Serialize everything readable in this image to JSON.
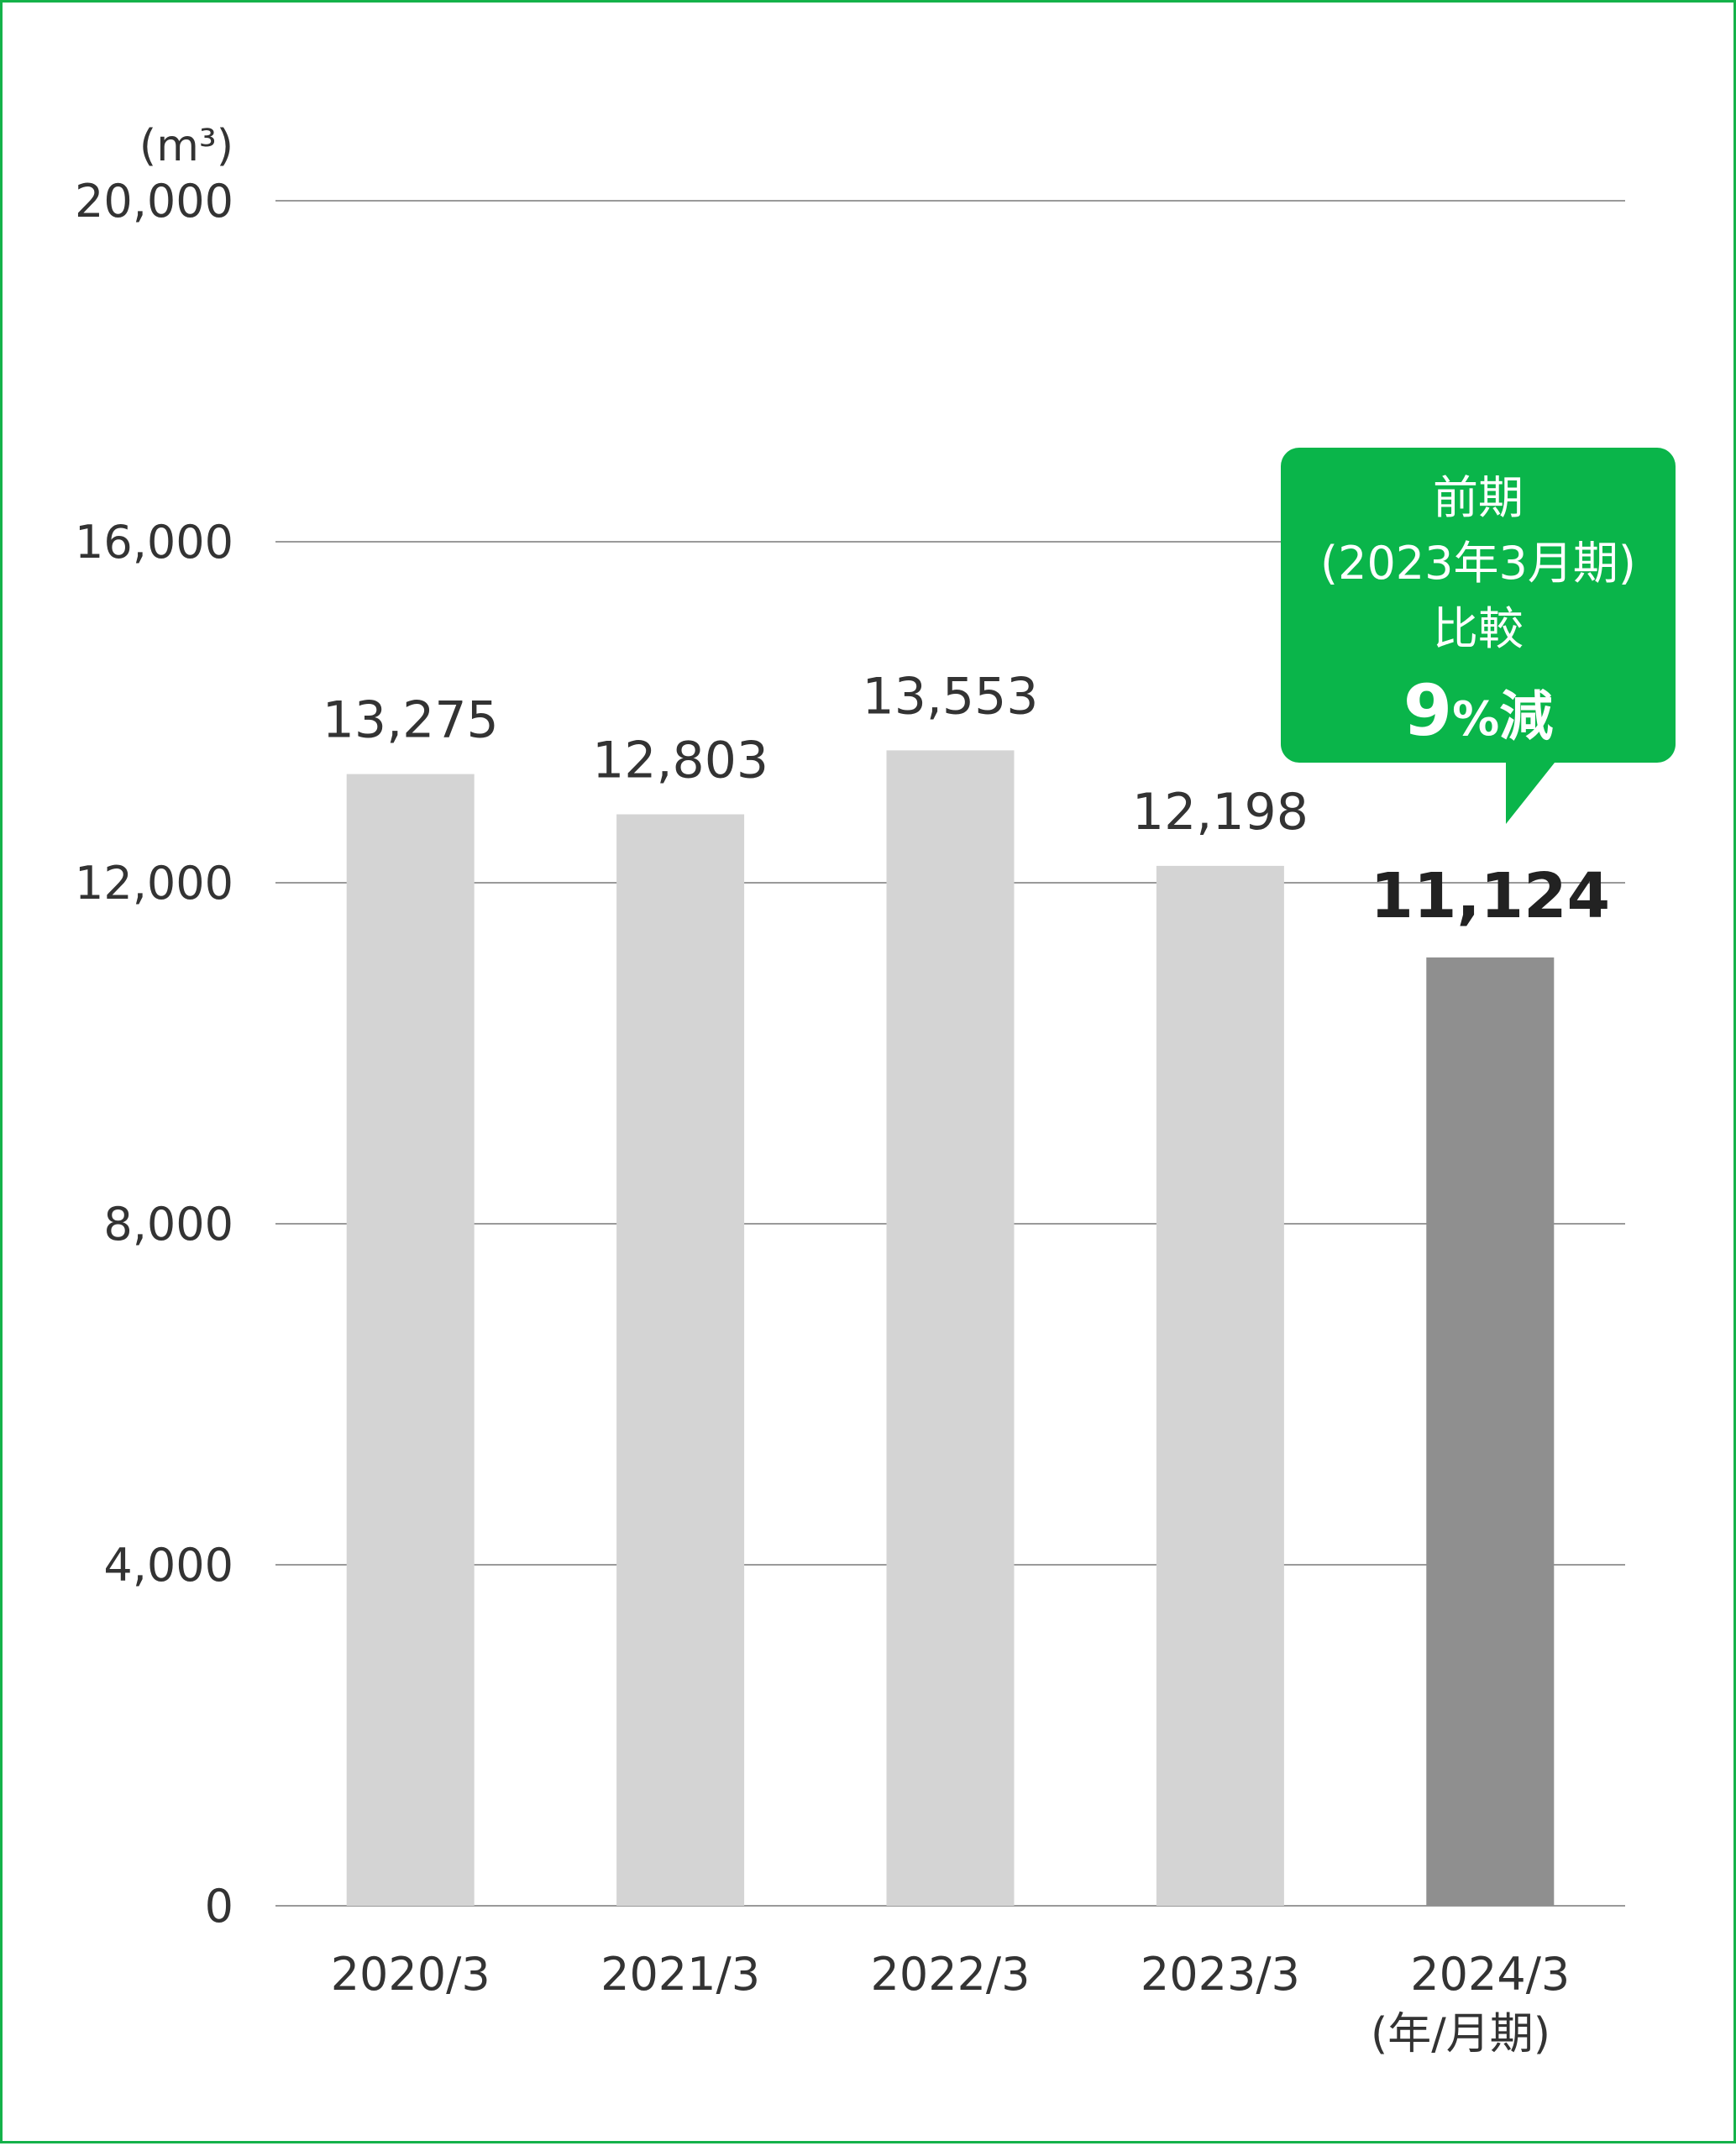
{
  "chart_data": {
    "type": "bar",
    "unit_label": "(m³)",
    "categories": [
      "2020/3",
      "2021/3",
      "2022/3",
      "2023/3",
      "2024/3"
    ],
    "values": [
      13275,
      12803,
      13553,
      12198,
      11124
    ],
    "value_labels": [
      "13,275",
      "12,803",
      "13,553",
      "12,198",
      "11,124"
    ],
    "highlight_index": 4,
    "x_unit_label": "(年/月期)",
    "ylim": [
      0,
      20000
    ],
    "yticks": [
      0,
      4000,
      8000,
      12000,
      16000,
      20000
    ],
    "ytick_labels": [
      "0",
      "4,000",
      "8,000",
      "12,000",
      "16,000",
      "20,000"
    ],
    "grid": true,
    "colors": {
      "bar": "#d4d4d4",
      "bar_highlight": "#8f8f8f",
      "grid": "#9a9a9a",
      "callout": "#0ab54a",
      "border": "#15b24a"
    },
    "callout": {
      "line1": "前期",
      "line2": "(2023年3月期)",
      "line3": "比較",
      "value": "9",
      "percent": "%",
      "suffix": "減"
    }
  }
}
